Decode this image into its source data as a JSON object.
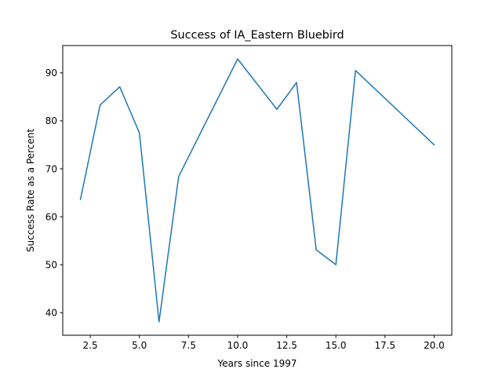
{
  "chart_data": {
    "type": "line",
    "title": "Success of IA_Eastern Bluebird",
    "xlabel": "Years since 1997",
    "ylabel": "Success Rate as a Percent",
    "xlim": [
      1.1,
      20.9
    ],
    "ylim": [
      35.3,
      95.7
    ],
    "xticks": [
      2.5,
      5.0,
      7.5,
      10.0,
      12.5,
      15.0,
      17.5,
      20.0
    ],
    "xtick_labels": [
      "2.5",
      "5.0",
      "7.5",
      "10.0",
      "12.5",
      "15.0",
      "17.5",
      "20.0"
    ],
    "yticks": [
      40,
      50,
      60,
      70,
      80,
      90
    ],
    "ytick_labels": [
      "40",
      "50",
      "60",
      "70",
      "80",
      "90"
    ],
    "grid": false,
    "series": [
      {
        "color": "#1f77b4",
        "x": [
          2,
          3,
          4,
          5,
          6,
          7,
          10,
          12,
          13,
          14,
          15,
          16,
          20
        ],
        "y": [
          63.6,
          83.3,
          87.1,
          77.5,
          38.1,
          68.4,
          92.9,
          82.4,
          88.0,
          53.1,
          50.0,
          90.5,
          75.0
        ]
      }
    ]
  }
}
